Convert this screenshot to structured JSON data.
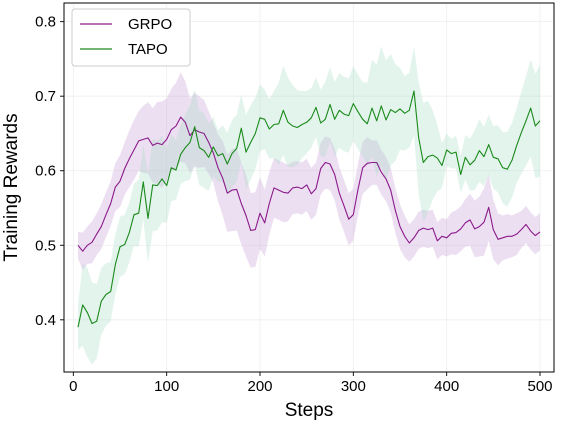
{
  "chart_data": {
    "type": "line",
    "title": "",
    "xlabel": "Steps",
    "ylabel": "Training Rewards",
    "xlim": [
      -10,
      515
    ],
    "ylim": [
      0.33,
      0.825
    ],
    "xticks": [
      0,
      100,
      200,
      300,
      400,
      500
    ],
    "xtick_labels": [
      "0",
      "100",
      "200",
      "300",
      "400",
      "500"
    ],
    "yticks": [
      0.4,
      0.5,
      0.6,
      0.7,
      0.8
    ],
    "ytick_labels": [
      "0.4",
      "0.5",
      "0.6",
      "0.7",
      "0.8"
    ],
    "grid": true,
    "legend_position": "top-left",
    "series": [
      {
        "name": "GRPO",
        "color": "#8b1a8b",
        "band_color": "#c39bd3",
        "x": [
          5,
          10,
          15,
          20,
          25,
          30,
          35,
          40,
          45,
          50,
          55,
          60,
          65,
          70,
          75,
          80,
          85,
          90,
          95,
          100,
          105,
          110,
          115,
          120,
          125,
          130,
          135,
          140,
          145,
          150,
          155,
          160,
          165,
          170,
          175,
          180,
          185,
          190,
          195,
          200,
          205,
          210,
          215,
          220,
          225,
          230,
          235,
          240,
          245,
          250,
          255,
          260,
          265,
          270,
          275,
          280,
          285,
          290,
          295,
          300,
          305,
          310,
          315,
          320,
          325,
          330,
          335,
          340,
          345,
          350,
          355,
          360,
          365,
          370,
          375,
          380,
          385,
          390,
          395,
          400,
          405,
          410,
          415,
          420,
          425,
          430,
          435,
          440,
          445,
          450,
          455,
          460,
          465,
          470,
          475,
          480,
          485,
          490,
          495,
          500
        ],
        "values": [
          0.5,
          0.492,
          0.5,
          0.504,
          0.515,
          0.525,
          0.541,
          0.556,
          0.578,
          0.586,
          0.603,
          0.616,
          0.628,
          0.64,
          0.642,
          0.644,
          0.634,
          0.637,
          0.635,
          0.642,
          0.655,
          0.66,
          0.672,
          0.665,
          0.647,
          0.655,
          0.652,
          0.65,
          0.638,
          0.624,
          0.604,
          0.59,
          0.57,
          0.574,
          0.575,
          0.556,
          0.54,
          0.52,
          0.521,
          0.543,
          0.53,
          0.556,
          0.577,
          0.574,
          0.571,
          0.57,
          0.577,
          0.578,
          0.576,
          0.581,
          0.569,
          0.576,
          0.603,
          0.611,
          0.609,
          0.595,
          0.57,
          0.553,
          0.535,
          0.541,
          0.575,
          0.604,
          0.61,
          0.611,
          0.611,
          0.598,
          0.589,
          0.574,
          0.547,
          0.525,
          0.512,
          0.503,
          0.51,
          0.52,
          0.523,
          0.521,
          0.523,
          0.506,
          0.512,
          0.51,
          0.516,
          0.517,
          0.522,
          0.53,
          0.534,
          0.522,
          0.525,
          0.531,
          0.551,
          0.521,
          0.508,
          0.51,
          0.512,
          0.512,
          0.515,
          0.521,
          0.528,
          0.519,
          0.513,
          0.518
        ],
        "band": [
          0.018,
          0.025,
          0.025,
          0.028,
          0.028,
          0.03,
          0.03,
          0.03,
          0.032,
          0.035,
          0.035,
          0.038,
          0.04,
          0.04,
          0.045,
          0.048,
          0.05,
          0.055,
          0.058,
          0.055,
          0.055,
          0.058,
          0.06,
          0.055,
          0.05,
          0.05,
          0.048,
          0.045,
          0.042,
          0.04,
          0.045,
          0.05,
          0.052,
          0.055,
          0.055,
          0.055,
          0.055,
          0.05,
          0.05,
          0.048,
          0.045,
          0.042,
          0.04,
          0.04,
          0.04,
          0.038,
          0.035,
          0.035,
          0.035,
          0.035,
          0.035,
          0.035,
          0.035,
          0.035,
          0.035,
          0.035,
          0.035,
          0.035,
          0.035,
          0.035,
          0.035,
          0.035,
          0.035,
          0.03,
          0.03,
          0.03,
          0.03,
          0.03,
          0.03,
          0.03,
          0.028,
          0.025,
          0.025,
          0.025,
          0.025,
          0.025,
          0.025,
          0.025,
          0.025,
          0.025,
          0.028,
          0.03,
          0.03,
          0.032,
          0.035,
          0.038,
          0.04,
          0.045,
          0.045,
          0.04,
          0.035,
          0.03,
          0.03,
          0.028,
          0.028,
          0.025,
          0.025,
          0.025,
          0.025,
          0.025
        ]
      },
      {
        "name": "TAPO",
        "color": "#1a8a1a",
        "band_color": "#a8dcc8",
        "x": [
          5,
          10,
          15,
          20,
          25,
          30,
          35,
          40,
          45,
          50,
          55,
          60,
          65,
          70,
          75,
          80,
          85,
          90,
          95,
          100,
          105,
          110,
          115,
          120,
          125,
          130,
          135,
          140,
          145,
          150,
          155,
          160,
          165,
          170,
          175,
          180,
          185,
          190,
          195,
          200,
          205,
          210,
          215,
          220,
          225,
          230,
          235,
          240,
          245,
          250,
          255,
          260,
          265,
          270,
          275,
          280,
          285,
          290,
          295,
          300,
          305,
          310,
          315,
          320,
          325,
          330,
          335,
          340,
          345,
          350,
          355,
          360,
          365,
          370,
          375,
          380,
          385,
          390,
          395,
          400,
          405,
          410,
          415,
          420,
          425,
          430,
          435,
          440,
          445,
          450,
          455,
          460,
          465,
          470,
          475,
          480,
          485,
          490,
          495,
          500
        ],
        "values": [
          0.39,
          0.42,
          0.41,
          0.395,
          0.398,
          0.425,
          0.434,
          0.438,
          0.474,
          0.498,
          0.501,
          0.517,
          0.541,
          0.543,
          0.585,
          0.536,
          0.581,
          0.58,
          0.589,
          0.58,
          0.604,
          0.601,
          0.622,
          0.631,
          0.638,
          0.659,
          0.631,
          0.627,
          0.618,
          0.632,
          0.62,
          0.623,
          0.609,
          0.623,
          0.63,
          0.657,
          0.625,
          0.638,
          0.65,
          0.671,
          0.669,
          0.656,
          0.662,
          0.663,
          0.681,
          0.665,
          0.66,
          0.658,
          0.662,
          0.665,
          0.671,
          0.685,
          0.664,
          0.669,
          0.689,
          0.669,
          0.681,
          0.676,
          0.674,
          0.69,
          0.679,
          0.669,
          0.663,
          0.684,
          0.667,
          0.687,
          0.668,
          0.682,
          0.678,
          0.683,
          0.677,
          0.681,
          0.707,
          0.644,
          0.611,
          0.619,
          0.621,
          0.617,
          0.607,
          0.628,
          0.623,
          0.625,
          0.595,
          0.618,
          0.608,
          0.614,
          0.627,
          0.619,
          0.635,
          0.618,
          0.616,
          0.604,
          0.602,
          0.614,
          0.634,
          0.651,
          0.667,
          0.684,
          0.66,
          0.667
        ]
      }
    ]
  },
  "tapo_band": [
    0.03,
    0.055,
    0.06,
    0.055,
    0.05,
    0.045,
    0.042,
    0.04,
    0.04,
    0.04,
    0.04,
    0.04,
    0.042,
    0.045,
    0.05,
    0.06,
    0.062,
    0.06,
    0.058,
    0.05,
    0.045,
    0.04,
    0.04,
    0.045,
    0.05,
    0.05,
    0.05,
    0.05,
    0.045,
    0.04,
    0.035,
    0.038,
    0.042,
    0.045,
    0.045,
    0.045,
    0.05,
    0.05,
    0.048,
    0.045,
    0.04,
    0.04,
    0.045,
    0.055,
    0.06,
    0.06,
    0.055,
    0.05,
    0.045,
    0.042,
    0.04,
    0.04,
    0.045,
    0.05,
    0.05,
    0.05,
    0.05,
    0.05,
    0.05,
    0.05,
    0.05,
    0.05,
    0.055,
    0.065,
    0.075,
    0.08,
    0.08,
    0.075,
    0.065,
    0.055,
    0.05,
    0.05,
    0.06,
    0.075,
    0.08,
    0.075,
    0.06,
    0.045,
    0.03,
    0.022,
    0.02,
    0.022,
    0.025,
    0.03,
    0.035,
    0.04,
    0.042,
    0.04,
    0.04,
    0.042,
    0.045,
    0.048,
    0.05,
    0.05,
    0.05,
    0.055,
    0.06,
    0.065,
    0.07,
    0.075
  ]
}
